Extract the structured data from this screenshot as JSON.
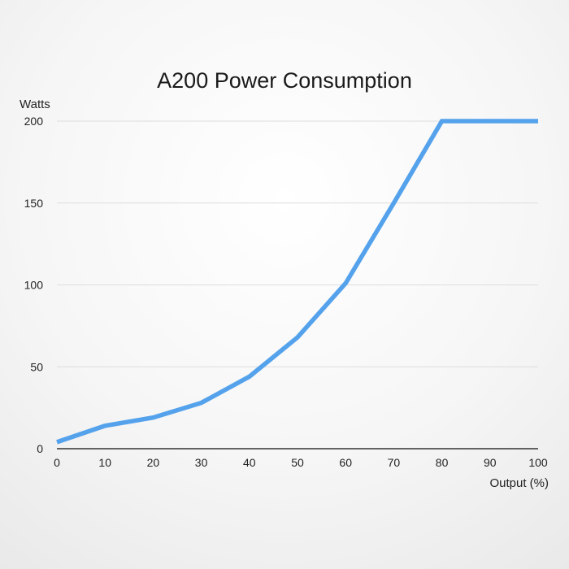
{
  "chart_data": {
    "type": "line",
    "title": "A200 Power Consumption",
    "xlabel": "Output (%)",
    "ylabel": "Watts",
    "x": [
      0,
      10,
      20,
      30,
      40,
      50,
      60,
      70,
      80,
      90,
      100
    ],
    "xticks": [
      "0",
      "10",
      "20",
      "30",
      "40",
      "50",
      "60",
      "70",
      "80",
      "90",
      "100"
    ],
    "yticks": [
      "0",
      "50",
      "100",
      "150",
      "200"
    ],
    "xlim": [
      0,
      100
    ],
    "ylim": [
      0,
      200
    ],
    "grid": "horizontal",
    "series": [
      {
        "values": [
          4,
          14,
          19,
          28,
          44,
          68,
          101,
          150,
          200,
          200,
          200
        ]
      }
    ],
    "colors": {
      "line": "#55A2EC",
      "grid": "#dddddd",
      "axis": "#333333"
    }
  }
}
